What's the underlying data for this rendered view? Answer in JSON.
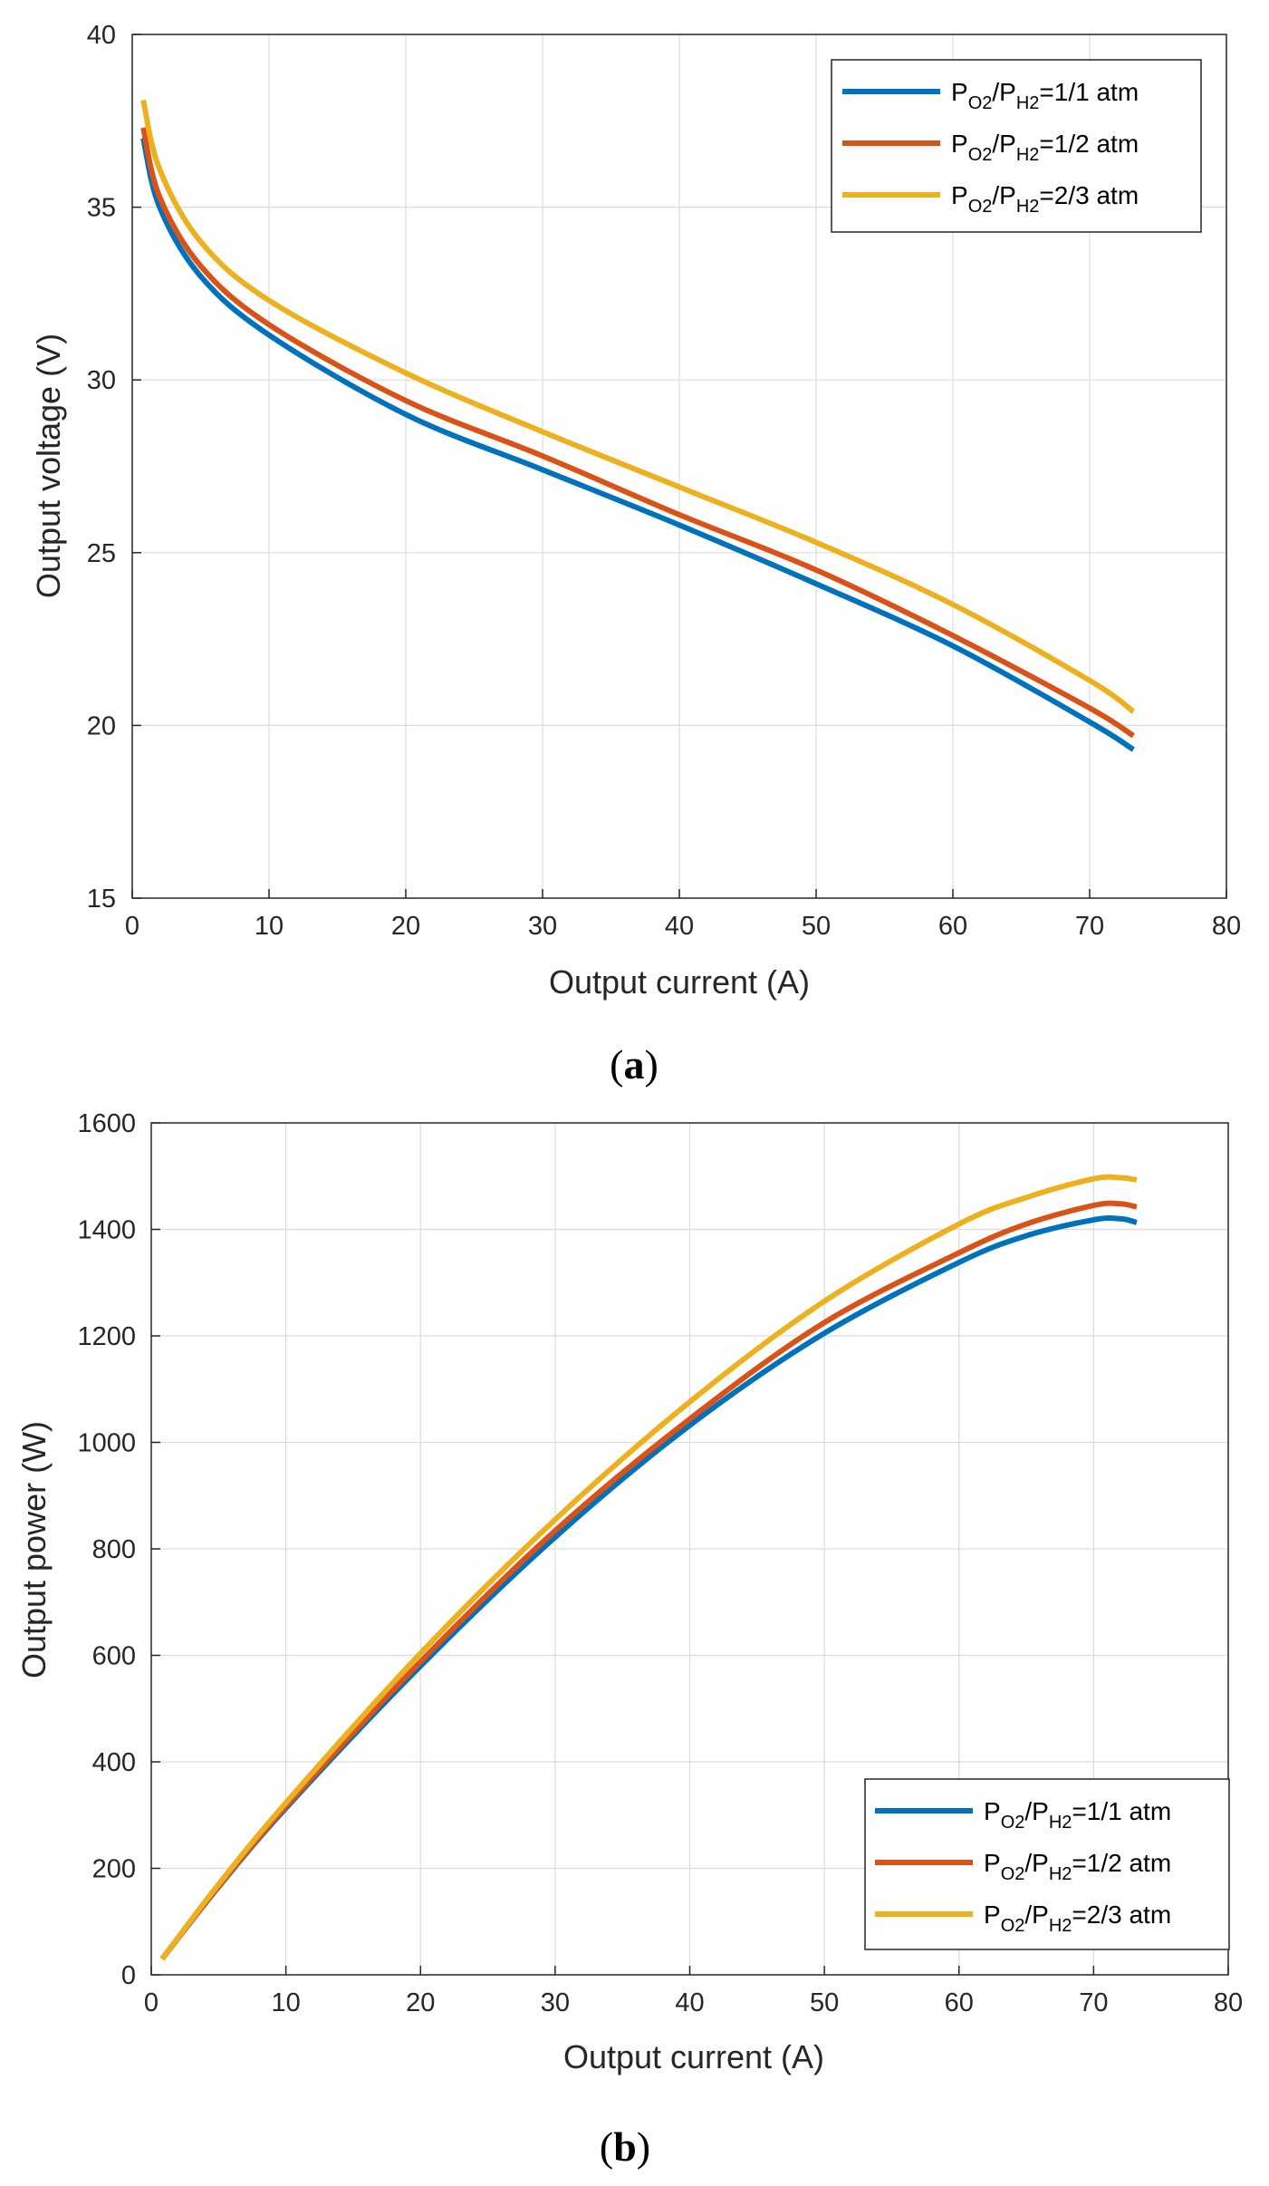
{
  "chart_data": [
    {
      "panel": "a",
      "type": "line",
      "xlabel": "Output current (A)",
      "ylabel": "Output voltage (V)",
      "xlim": [
        0,
        80
      ],
      "ylim": [
        15,
        40
      ],
      "xticks": [
        0,
        10,
        20,
        30,
        40,
        50,
        60,
        70,
        80
      ],
      "yticks": [
        15,
        20,
        25,
        30,
        35,
        40
      ],
      "grid": true,
      "legend_position": "top-right",
      "series": [
        {
          "name": "PO2/PH2=1/1 atm",
          "legend": {
            "p1": "P",
            "s1": "O2",
            "slash": "/",
            "p2": "P",
            "s2": "H2",
            "rest": "=1/1 atm"
          },
          "color": "#0072BD",
          "x": [
            0.8,
            2,
            5,
            10,
            20,
            30,
            40,
            50,
            60,
            70,
            73.2
          ],
          "y": [
            37.0,
            35.0,
            33.0,
            31.3,
            29.0,
            27.4,
            25.8,
            24.1,
            22.3,
            20.1,
            19.3
          ]
        },
        {
          "name": "PO2/PH2=1/2 atm",
          "legend": {
            "p1": "P",
            "s1": "O2",
            "slash": "/",
            "p2": "P",
            "s2": "H2",
            "rest": "=1/2 atm"
          },
          "color": "#D95319",
          "x": [
            0.8,
            2,
            5,
            10,
            20,
            30,
            40,
            50,
            60,
            70,
            73.2
          ],
          "y": [
            37.3,
            35.3,
            33.3,
            31.6,
            29.4,
            27.8,
            26.1,
            24.5,
            22.6,
            20.5,
            19.7
          ]
        },
        {
          "name": "PO2/PH2=2/3 atm",
          "legend": {
            "p1": "P",
            "s1": "O2",
            "slash": "/",
            "p2": "P",
            "s2": "H2",
            "rest": "=2/3 atm"
          },
          "color": "#EDB120",
          "x": [
            0.8,
            2,
            5,
            10,
            20,
            30,
            40,
            50,
            60,
            70,
            73.2
          ],
          "y": [
            38.1,
            36.1,
            34.0,
            32.3,
            30.2,
            28.5,
            26.9,
            25.3,
            23.5,
            21.3,
            20.4
          ]
        }
      ]
    },
    {
      "panel": "b",
      "type": "line",
      "xlabel": "Output current (A)",
      "ylabel": "Output power (W)",
      "xlim": [
        0,
        80
      ],
      "ylim": [
        0,
        1600
      ],
      "xticks": [
        0,
        10,
        20,
        30,
        40,
        50,
        60,
        70,
        80
      ],
      "yticks": [
        0,
        200,
        400,
        600,
        800,
        1000,
        1200,
        1400,
        1600
      ],
      "grid": true,
      "legend_position": "bottom-right",
      "series": [
        {
          "name": "PO2/PH2=1/1 atm",
          "legend": {
            "p1": "P",
            "s1": "O2",
            "slash": "/",
            "p2": "P",
            "s2": "H2",
            "rest": "=1/1 atm"
          },
          "color": "#0072BD",
          "x": [
            0.8,
            5,
            10,
            20,
            30,
            40,
            50,
            60,
            65,
            70,
            72,
            73.2
          ],
          "y": [
            30,
            165,
            313,
            580,
            822,
            1032,
            1205,
            1338,
            1388,
            1418,
            1420,
            1413
          ]
        },
        {
          "name": "PO2/PH2=1/2 atm",
          "legend": {
            "p1": "P",
            "s1": "O2",
            "slash": "/",
            "p2": "P",
            "s2": "H2",
            "rest": "=1/2 atm"
          },
          "color": "#D95319",
          "x": [
            0.8,
            5,
            10,
            20,
            30,
            40,
            50,
            60,
            65,
            70,
            72,
            73.2
          ],
          "y": [
            30,
            166,
            316,
            588,
            834,
            1044,
            1225,
            1356,
            1410,
            1445,
            1448,
            1442
          ]
        },
        {
          "name": "PO2/PH2=2/3 atm",
          "legend": {
            "p1": "P",
            "s1": "O2",
            "slash": "/",
            "p2": "P",
            "s2": "H2",
            "rest": "=2/3 atm"
          },
          "color": "#EDB120",
          "x": [
            0.8,
            5,
            10,
            20,
            30,
            40,
            50,
            60,
            65,
            70,
            72,
            73.2
          ],
          "y": [
            30,
            170,
            323,
            604,
            855,
            1076,
            1265,
            1410,
            1460,
            1495,
            1497,
            1493
          ]
        }
      ]
    }
  ],
  "captions": [
    {
      "open": "(",
      "letter": "a",
      "close": ")"
    },
    {
      "open": "(",
      "letter": "b",
      "close": ")"
    }
  ]
}
